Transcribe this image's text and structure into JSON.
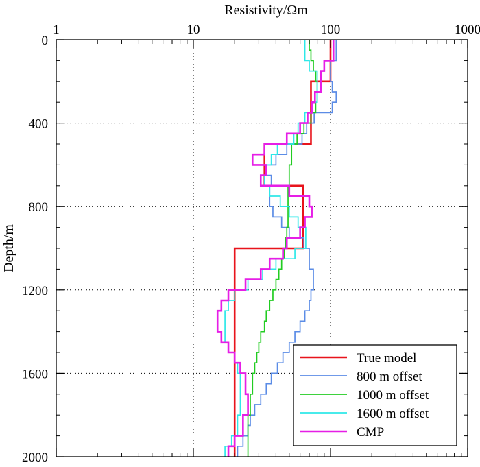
{
  "chart_data": {
    "type": "line",
    "title": "",
    "xlabel": "Resistivity/Ωm",
    "ylabel": "Depth/m",
    "x_scale": "log",
    "xlim": [
      1,
      1000
    ],
    "ylim": [
      0,
      2000
    ],
    "y_inverted": true,
    "x_ticks": [
      "1",
      "10",
      "100",
      "1000"
    ],
    "y_ticks": [
      "0",
      "400",
      "800",
      "1200",
      "1600",
      "2000"
    ],
    "grid": true,
    "legend_position": "bottom-right",
    "series": [
      {
        "name": "True model",
        "color": "#e8141c",
        "steps": [
          [
            0,
            100
          ],
          [
            200,
            72
          ],
          [
            500,
            33
          ],
          [
            700,
            63
          ],
          [
            1000,
            20
          ],
          [
            2000,
            20
          ]
        ]
      },
      {
        "name": "800 m offset",
        "color": "#5b8ce6",
        "steps": [
          [
            0,
            110
          ],
          [
            100,
            100
          ],
          [
            200,
            103
          ],
          [
            250,
            110
          ],
          [
            300,
            103
          ],
          [
            350,
            76
          ],
          [
            400,
            67
          ],
          [
            450,
            62
          ],
          [
            500,
            48
          ],
          [
            550,
            40
          ],
          [
            600,
            34
          ],
          [
            650,
            37
          ],
          [
            700,
            36
          ],
          [
            750,
            36
          ],
          [
            800,
            38
          ],
          [
            850,
            44
          ],
          [
            900,
            50
          ],
          [
            950,
            64
          ],
          [
            1000,
            70
          ],
          [
            1100,
            75
          ],
          [
            1200,
            72
          ],
          [
            1250,
            70
          ],
          [
            1300,
            65
          ],
          [
            1350,
            60
          ],
          [
            1400,
            55
          ],
          [
            1450,
            50
          ],
          [
            1500,
            45
          ],
          [
            1550,
            41
          ],
          [
            1600,
            37
          ],
          [
            1650,
            34
          ],
          [
            1700,
            31
          ],
          [
            1750,
            28
          ],
          [
            1800,
            26
          ],
          [
            1850,
            25
          ],
          [
            1900,
            23
          ],
          [
            1950,
            21
          ]
        ]
      },
      {
        "name": "1000 m offset",
        "color": "#22cc22",
        "steps": [
          [
            0,
            70
          ],
          [
            50,
            72
          ],
          [
            100,
            75
          ],
          [
            150,
            78
          ],
          [
            200,
            80
          ],
          [
            300,
            78
          ],
          [
            350,
            72
          ],
          [
            400,
            64
          ],
          [
            450,
            57
          ],
          [
            500,
            52
          ],
          [
            600,
            50
          ],
          [
            700,
            49
          ],
          [
            800,
            49
          ],
          [
            900,
            48
          ],
          [
            950,
            47
          ],
          [
            1000,
            46
          ],
          [
            1050,
            44
          ],
          [
            1100,
            42
          ],
          [
            1150,
            40
          ],
          [
            1200,
            38
          ],
          [
            1250,
            36
          ],
          [
            1300,
            34
          ],
          [
            1350,
            33
          ],
          [
            1400,
            31
          ],
          [
            1450,
            30
          ],
          [
            1500,
            29
          ],
          [
            1550,
            28
          ],
          [
            1600,
            27
          ],
          [
            1700,
            26
          ],
          [
            1800,
            25
          ],
          [
            2000,
            25
          ]
        ]
      },
      {
        "name": "1600 m offset",
        "color": "#2ee8e8",
        "steps": [
          [
            0,
            65
          ],
          [
            100,
            70
          ],
          [
            150,
            80
          ],
          [
            200,
            80
          ],
          [
            300,
            73
          ],
          [
            350,
            65
          ],
          [
            400,
            58
          ],
          [
            450,
            54
          ],
          [
            500,
            41
          ],
          [
            550,
            37
          ],
          [
            600,
            34
          ],
          [
            650,
            33
          ],
          [
            700,
            36
          ],
          [
            750,
            43
          ],
          [
            800,
            50
          ],
          [
            850,
            58
          ],
          [
            900,
            66
          ],
          [
            1000,
            55
          ],
          [
            1050,
            40
          ],
          [
            1100,
            32
          ],
          [
            1150,
            25
          ],
          [
            1200,
            20
          ],
          [
            1250,
            18
          ],
          [
            1300,
            17
          ],
          [
            1350,
            17
          ],
          [
            1400,
            17
          ],
          [
            1450,
            18
          ],
          [
            1500,
            20
          ],
          [
            1550,
            21
          ],
          [
            1600,
            22
          ],
          [
            1700,
            22
          ],
          [
            1800,
            21
          ],
          [
            1900,
            19
          ],
          [
            1950,
            17
          ]
        ]
      },
      {
        "name": "CMP",
        "color": "#e61ee6",
        "steps": [
          [
            0,
            105
          ],
          [
            100,
            90
          ],
          [
            150,
            85
          ],
          [
            200,
            85
          ],
          [
            250,
            77
          ],
          [
            300,
            73
          ],
          [
            350,
            68
          ],
          [
            400,
            60
          ],
          [
            450,
            48
          ],
          [
            500,
            33
          ],
          [
            550,
            27
          ],
          [
            600,
            34
          ],
          [
            650,
            31
          ],
          [
            700,
            50
          ],
          [
            750,
            70
          ],
          [
            800,
            73
          ],
          [
            850,
            65
          ],
          [
            900,
            60
          ],
          [
            950,
            48
          ],
          [
            1000,
            45
          ],
          [
            1050,
            36
          ],
          [
            1100,
            31
          ],
          [
            1150,
            24
          ],
          [
            1200,
            18
          ],
          [
            1250,
            16
          ],
          [
            1300,
            15
          ],
          [
            1350,
            15
          ],
          [
            1400,
            16
          ],
          [
            1450,
            18
          ],
          [
            1500,
            20
          ],
          [
            1550,
            22
          ],
          [
            1600,
            24
          ],
          [
            1700,
            25
          ],
          [
            1800,
            23
          ],
          [
            1900,
            20
          ],
          [
            1950,
            18
          ]
        ]
      }
    ]
  }
}
